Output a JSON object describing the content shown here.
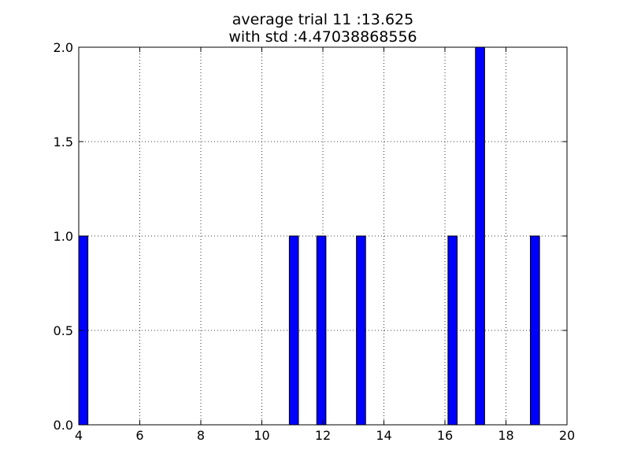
{
  "chart_data": {
    "type": "bar",
    "title_lines": [
      "average trial 11 :13.625",
      "with std :4.47038868556"
    ],
    "xlabel": "",
    "ylabel": "",
    "xlim": [
      4,
      20
    ],
    "ylim": [
      0,
      2
    ],
    "x_ticks": [
      "4",
      "6",
      "8",
      "10",
      "12",
      "14",
      "16",
      "18",
      "20"
    ],
    "y_ticks": [
      "0.0",
      "0.5",
      "1.0",
      "1.5",
      "2.0"
    ],
    "x_tick_values": [
      4,
      6,
      8,
      10,
      12,
      14,
      16,
      18,
      20
    ],
    "y_tick_values": [
      0,
      0.5,
      1.0,
      1.5,
      2.0
    ],
    "grid": true,
    "bar_width": 0.3,
    "bar_color": "#0000ff",
    "bars": [
      {
        "x": 4.0,
        "value": 1
      },
      {
        "x": 10.9,
        "value": 1
      },
      {
        "x": 11.8,
        "value": 1
      },
      {
        "x": 13.1,
        "value": 1
      },
      {
        "x": 16.1,
        "value": 1
      },
      {
        "x": 17.0,
        "value": 2
      },
      {
        "x": 18.8,
        "value": 1
      }
    ]
  }
}
